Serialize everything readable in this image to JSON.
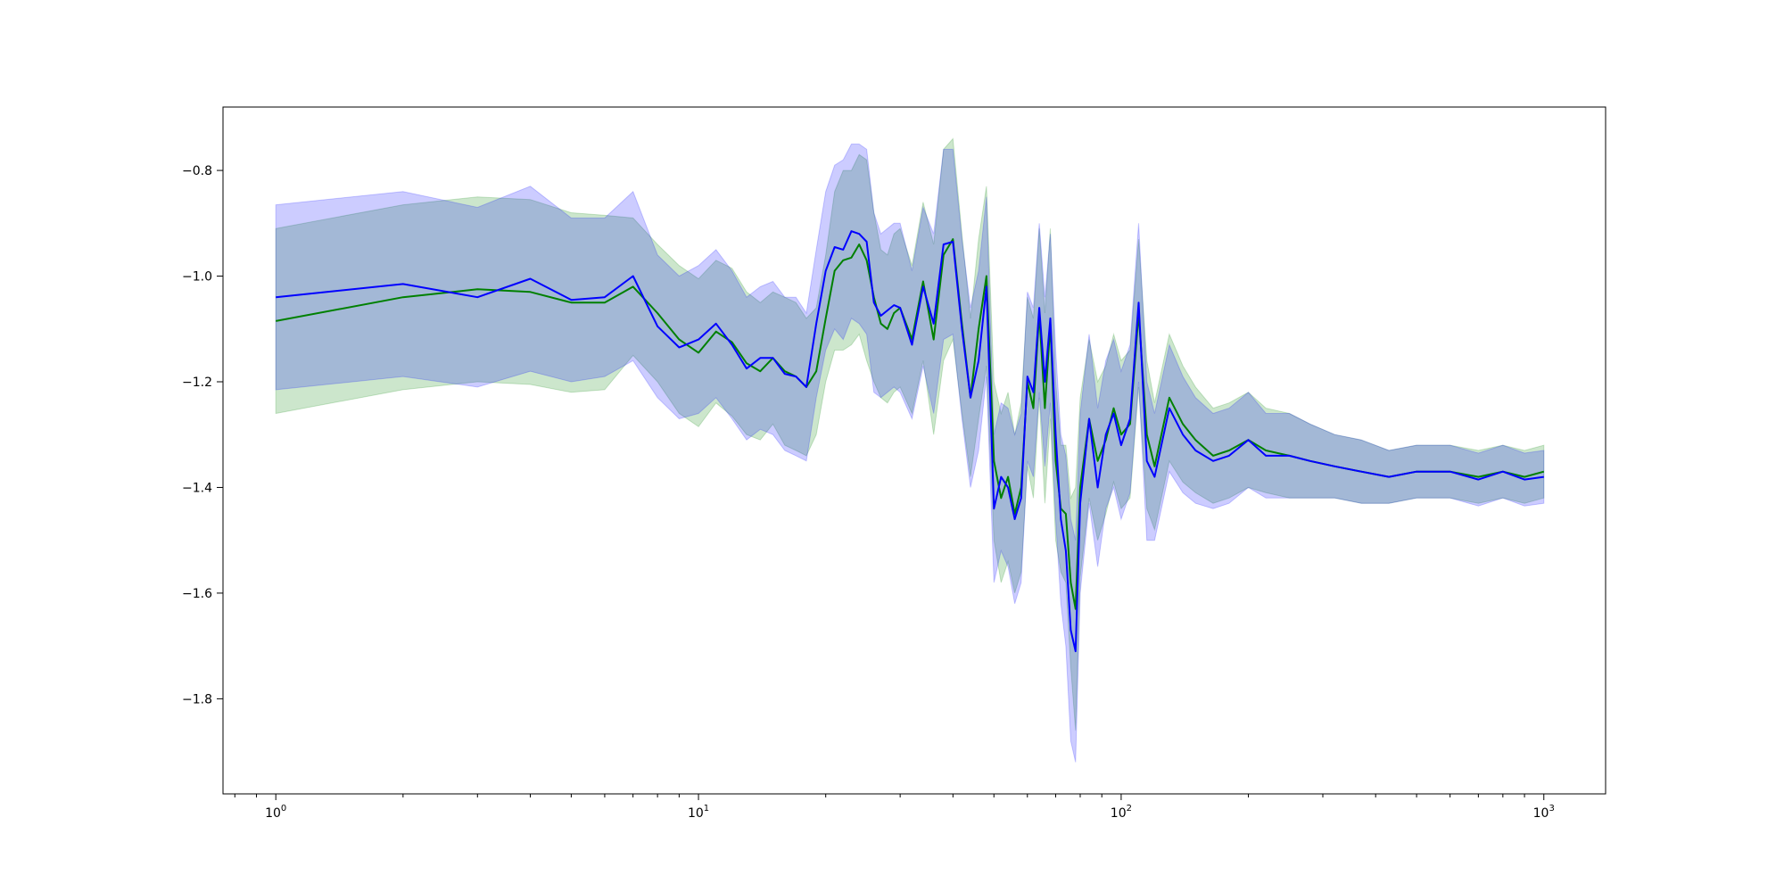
{
  "chart_data": {
    "type": "line",
    "title": "",
    "xlabel": "",
    "ylabel": "",
    "x_scale": "log",
    "xlim": [
      0.75,
      1400
    ],
    "ylim": [
      -1.98,
      -0.68
    ],
    "grid": false,
    "legend": "none",
    "x_ticks": [
      {
        "value": 1,
        "base": "10",
        "exp": "0"
      },
      {
        "value": 10,
        "base": "10",
        "exp": "1"
      },
      {
        "value": 100,
        "base": "10",
        "exp": "2"
      },
      {
        "value": 1000,
        "base": "10",
        "exp": "3"
      }
    ],
    "y_ticks": [
      {
        "value": -0.8,
        "label": "−0.8"
      },
      {
        "value": -1.0,
        "label": "−1.0"
      },
      {
        "value": -1.2,
        "label": "−1.2"
      },
      {
        "value": -1.4,
        "label": "−1.4"
      },
      {
        "value": -1.6,
        "label": "−1.6"
      },
      {
        "value": -1.8,
        "label": "−1.8"
      }
    ],
    "series": [
      {
        "color": "#008000",
        "band_color": "#008000",
        "band_opacity": 0.2,
        "x": [
          1,
          2,
          3,
          4,
          5,
          6,
          7,
          8,
          9,
          10,
          11,
          12,
          13,
          14,
          15,
          16,
          17,
          18,
          19,
          20,
          21,
          22,
          23,
          24,
          25,
          26,
          27,
          28,
          29,
          30,
          32,
          34,
          36,
          38,
          40,
          42,
          44,
          46,
          48,
          50,
          52,
          54,
          56,
          58,
          60,
          62,
          64,
          66,
          68,
          70,
          72,
          74,
          76,
          78,
          80,
          84,
          88,
          92,
          96,
          100,
          105,
          110,
          115,
          120,
          130,
          140,
          150,
          165,
          180,
          200,
          220,
          250,
          280,
          320,
          370,
          430,
          500,
          600,
          700,
          800,
          900,
          1000
        ],
        "y": [
          -1.085,
          -1.04,
          -1.025,
          -1.03,
          -1.05,
          -1.05,
          -1.02,
          -1.07,
          -1.12,
          -1.145,
          -1.105,
          -1.125,
          -1.165,
          -1.18,
          -1.155,
          -1.18,
          -1.19,
          -1.21,
          -1.18,
          -1.08,
          -0.99,
          -0.97,
          -0.965,
          -0.94,
          -0.97,
          -1.04,
          -1.09,
          -1.1,
          -1.07,
          -1.06,
          -1.12,
          -1.01,
          -1.12,
          -0.96,
          -0.93,
          -1.09,
          -1.23,
          -1.1,
          -1.0,
          -1.35,
          -1.42,
          -1.38,
          -1.45,
          -1.4,
          -1.2,
          -1.25,
          -1.07,
          -1.25,
          -1.09,
          -1.35,
          -1.44,
          -1.45,
          -1.58,
          -1.63,
          -1.4,
          -1.27,
          -1.35,
          -1.31,
          -1.25,
          -1.3,
          -1.28,
          -1.07,
          -1.3,
          -1.36,
          -1.23,
          -1.28,
          -1.31,
          -1.34,
          -1.33,
          -1.31,
          -1.33,
          -1.34,
          -1.35,
          -1.36,
          -1.37,
          -1.38,
          -1.37,
          -1.37,
          -1.38,
          -1.37,
          -1.38,
          -1.37
        ],
        "lower": [
          -1.26,
          -1.215,
          -1.2,
          -1.205,
          -1.22,
          -1.215,
          -1.15,
          -1.2,
          -1.26,
          -1.285,
          -1.24,
          -1.265,
          -1.3,
          -1.31,
          -1.28,
          -1.32,
          -1.33,
          -1.34,
          -1.3,
          -1.2,
          -1.14,
          -1.14,
          -1.13,
          -1.11,
          -1.16,
          -1.2,
          -1.23,
          -1.24,
          -1.22,
          -1.21,
          -1.26,
          -1.16,
          -1.3,
          -1.16,
          -1.12,
          -1.26,
          -1.38,
          -1.27,
          -1.17,
          -1.5,
          -1.58,
          -1.54,
          -1.6,
          -1.56,
          -1.36,
          -1.42,
          -1.23,
          -1.43,
          -1.27,
          -1.5,
          -1.56,
          -1.58,
          -1.74,
          -1.86,
          -1.57,
          -1.42,
          -1.5,
          -1.45,
          -1.39,
          -1.44,
          -1.42,
          -1.21,
          -1.44,
          -1.48,
          -1.35,
          -1.39,
          -1.41,
          -1.43,
          -1.42,
          -1.4,
          -1.41,
          -1.42,
          -1.42,
          -1.42,
          -1.43,
          -1.43,
          -1.42,
          -1.42,
          -1.43,
          -1.42,
          -1.43,
          -1.42
        ],
        "upper": [
          -0.91,
          -0.865,
          -0.85,
          -0.855,
          -0.88,
          -0.885,
          -0.89,
          -0.94,
          -0.98,
          -1.005,
          -0.97,
          -0.985,
          -1.03,
          -1.05,
          -1.03,
          -1.04,
          -1.05,
          -1.08,
          -1.06,
          -0.96,
          -0.84,
          -0.8,
          -0.8,
          -0.77,
          -0.78,
          -0.88,
          -0.95,
          -0.96,
          -0.92,
          -0.91,
          -0.98,
          -0.86,
          -0.94,
          -0.76,
          -0.74,
          -0.92,
          -1.08,
          -0.93,
          -0.83,
          -1.2,
          -1.26,
          -1.22,
          -1.3,
          -1.24,
          -1.04,
          -1.08,
          -0.91,
          -1.07,
          -0.91,
          -1.2,
          -1.32,
          -1.32,
          -1.42,
          -1.4,
          -1.23,
          -1.12,
          -1.2,
          -1.17,
          -1.11,
          -1.16,
          -1.14,
          -0.93,
          -1.16,
          -1.24,
          -1.11,
          -1.17,
          -1.21,
          -1.25,
          -1.24,
          -1.22,
          -1.25,
          -1.26,
          -1.28,
          -1.3,
          -1.31,
          -1.33,
          -1.32,
          -1.32,
          -1.33,
          -1.32,
          -1.33,
          -1.32
        ]
      },
      {
        "color": "#0000ff",
        "band_color": "#0000ff",
        "band_opacity": 0.2,
        "x": [
          1,
          2,
          3,
          4,
          5,
          6,
          7,
          8,
          9,
          10,
          11,
          12,
          13,
          14,
          15,
          16,
          17,
          18,
          19,
          20,
          21,
          22,
          23,
          24,
          25,
          26,
          27,
          28,
          29,
          30,
          32,
          34,
          36,
          38,
          40,
          42,
          44,
          46,
          48,
          50,
          52,
          54,
          56,
          58,
          60,
          62,
          64,
          66,
          68,
          70,
          72,
          74,
          76,
          78,
          80,
          84,
          88,
          92,
          96,
          100,
          105,
          110,
          115,
          120,
          130,
          140,
          150,
          165,
          180,
          200,
          220,
          250,
          280,
          320,
          370,
          430,
          500,
          600,
          700,
          800,
          900,
          1000
        ],
        "y": [
          -1.04,
          -1.015,
          -1.04,
          -1.005,
          -1.045,
          -1.04,
          -1.0,
          -1.095,
          -1.135,
          -1.12,
          -1.09,
          -1.13,
          -1.175,
          -1.155,
          -1.155,
          -1.185,
          -1.19,
          -1.21,
          -1.09,
          -0.99,
          -0.945,
          -0.95,
          -0.915,
          -0.92,
          -0.935,
          -1.05,
          -1.075,
          -1.065,
          -1.055,
          -1.06,
          -1.13,
          -1.02,
          -1.09,
          -0.94,
          -0.935,
          -1.1,
          -1.23,
          -1.16,
          -1.02,
          -1.44,
          -1.38,
          -1.4,
          -1.46,
          -1.42,
          -1.19,
          -1.22,
          -1.06,
          -1.2,
          -1.08,
          -1.3,
          -1.46,
          -1.52,
          -1.67,
          -1.71,
          -1.43,
          -1.27,
          -1.4,
          -1.3,
          -1.26,
          -1.32,
          -1.27,
          -1.05,
          -1.35,
          -1.38,
          -1.25,
          -1.3,
          -1.33,
          -1.35,
          -1.34,
          -1.31,
          -1.34,
          -1.34,
          -1.35,
          -1.36,
          -1.37,
          -1.38,
          -1.37,
          -1.37,
          -1.385,
          -1.37,
          -1.385,
          -1.38
        ],
        "lower": [
          -1.215,
          -1.19,
          -1.21,
          -1.18,
          -1.2,
          -1.19,
          -1.16,
          -1.23,
          -1.27,
          -1.26,
          -1.23,
          -1.27,
          -1.31,
          -1.29,
          -1.3,
          -1.33,
          -1.34,
          -1.35,
          -1.23,
          -1.14,
          -1.1,
          -1.12,
          -1.08,
          -1.09,
          -1.11,
          -1.22,
          -1.23,
          -1.22,
          -1.21,
          -1.22,
          -1.27,
          -1.17,
          -1.26,
          -1.12,
          -1.11,
          -1.27,
          -1.4,
          -1.33,
          -1.19,
          -1.58,
          -1.52,
          -1.55,
          -1.62,
          -1.58,
          -1.35,
          -1.38,
          -1.22,
          -1.36,
          -1.24,
          -1.46,
          -1.62,
          -1.7,
          -1.88,
          -1.92,
          -1.6,
          -1.43,
          -1.55,
          -1.44,
          -1.4,
          -1.46,
          -1.41,
          -1.2,
          -1.5,
          -1.5,
          -1.37,
          -1.41,
          -1.43,
          -1.44,
          -1.43,
          -1.4,
          -1.42,
          -1.42,
          -1.42,
          -1.42,
          -1.43,
          -1.43,
          -1.42,
          -1.42,
          -1.435,
          -1.42,
          -1.435,
          -1.43
        ],
        "upper": [
          -0.865,
          -0.84,
          -0.87,
          -0.83,
          -0.89,
          -0.89,
          -0.84,
          -0.96,
          -1.0,
          -0.98,
          -0.95,
          -0.99,
          -1.04,
          -1.02,
          -1.01,
          -1.04,
          -1.04,
          -1.07,
          -0.95,
          -0.84,
          -0.79,
          -0.78,
          -0.75,
          -0.75,
          -0.76,
          -0.88,
          -0.92,
          -0.91,
          -0.9,
          -0.9,
          -0.99,
          -0.87,
          -0.92,
          -0.76,
          -0.76,
          -0.93,
          -1.06,
          -0.99,
          -0.85,
          -1.3,
          -1.24,
          -1.25,
          -1.3,
          -1.26,
          -1.03,
          -1.06,
          -0.9,
          -1.04,
          -0.92,
          -1.14,
          -1.3,
          -1.34,
          -1.46,
          -1.5,
          -1.26,
          -1.11,
          -1.25,
          -1.16,
          -1.12,
          -1.18,
          -1.13,
          -0.9,
          -1.2,
          -1.26,
          -1.13,
          -1.19,
          -1.23,
          -1.26,
          -1.25,
          -1.22,
          -1.26,
          -1.26,
          -1.28,
          -1.3,
          -1.31,
          -1.33,
          -1.32,
          -1.32,
          -1.335,
          -1.32,
          -1.335,
          -1.33
        ]
      }
    ]
  }
}
